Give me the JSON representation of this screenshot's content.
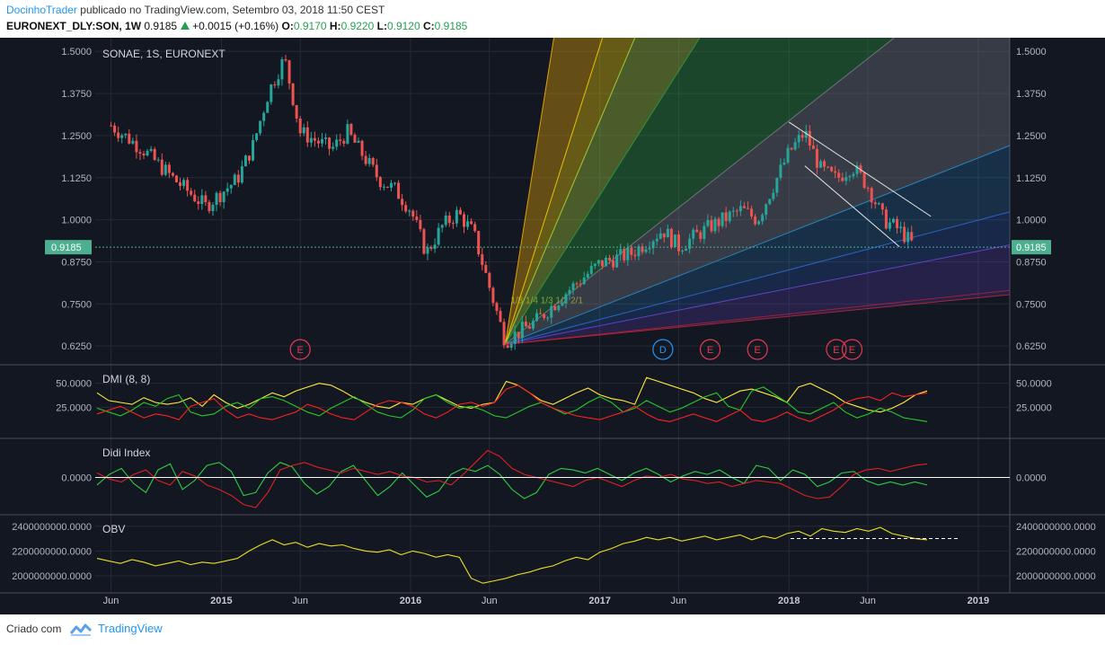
{
  "header": {
    "author": "DocinhoTrader",
    "published_text": " publicado no TradingView.com, Setembro 03, 2018 11:50 CEST",
    "symbol": "EURONEXT_DLY:SON, 1W",
    "last_price": "0.9185",
    "change": "+0.0015 (+0.16%)",
    "o_label": "O:",
    "o_value": "0.9170",
    "h_label": "H:",
    "h_value": "0.9220",
    "l_label": "L:",
    "l_value": "0.9120",
    "c_label": "C:",
    "c_value": "0.9185"
  },
  "footer": {
    "created_with": "Criado com",
    "brand": "TradingView"
  },
  "colors": {
    "background": "#131722",
    "grid": "#262a35",
    "up": "#26a69a",
    "down": "#ef5350",
    "price_line": "#4caf90",
    "dmi_plus": "#26c926",
    "dmi_minus": "#ff2020",
    "adx": "#ffeb3b",
    "didi_fast": "#2ecc40",
    "didi_slow": "#e02020",
    "obv": "#e8e020"
  },
  "chart_data": [
    {
      "type": "candlestick",
      "title": "SONAE, 1S, EURONEXT",
      "ylim": [
        0.58,
        1.53
      ],
      "y_ticks": [
        "1.5000",
        "1.3750",
        "1.2500",
        "1.1250",
        "1.0000",
        "0.8750",
        "0.7500",
        "0.6250"
      ],
      "last_price_label": "0.9185",
      "last_price": 0.9185,
      "x_ticks": [
        "Jun",
        "2015",
        "Jun",
        "2016",
        "Jun",
        "2017",
        "Jun",
        "2018",
        "Jun",
        "2019"
      ],
      "x_range": [
        "2014-05",
        "2019-03"
      ],
      "price_path": [
        [
          "2014-06",
          1.28
        ],
        [
          "2014-08",
          1.21
        ],
        [
          "2014-10",
          1.12
        ],
        [
          "2014-12",
          1.04
        ],
        [
          "2015-02",
          1.12
        ],
        [
          "2015-03",
          1.22
        ],
        [
          "2015-04",
          1.38
        ],
        [
          "2015-05",
          1.48
        ],
        [
          "2015-06",
          1.26
        ],
        [
          "2015-08",
          1.21
        ],
        [
          "2015-09",
          1.26
        ],
        [
          "2015-10",
          1.19
        ],
        [
          "2015-11",
          1.12
        ],
        [
          "2015-12",
          1.09
        ],
        [
          "2016-01",
          1.03
        ],
        [
          "2016-02",
          0.9
        ],
        [
          "2016-03",
          0.98
        ],
        [
          "2016-04",
          1.02
        ],
        [
          "2016-05",
          0.96
        ],
        [
          "2016-06",
          0.8
        ],
        [
          "2016-07",
          0.64
        ],
        [
          "2016-09",
          0.7
        ],
        [
          "2016-11",
          0.79
        ],
        [
          "2017-01",
          0.87
        ],
        [
          "2017-03",
          0.9
        ],
        [
          "2017-05",
          0.97
        ],
        [
          "2017-06",
          0.92
        ],
        [
          "2017-08",
          0.98
        ],
        [
          "2017-10",
          1.03
        ],
        [
          "2017-11",
          1.0
        ],
        [
          "2017-12",
          1.1
        ],
        [
          "2018-01",
          1.2
        ],
        [
          "2018-02",
          1.26
        ],
        [
          "2018-03",
          1.15
        ],
        [
          "2018-04",
          1.12
        ],
        [
          "2018-05",
          1.16
        ],
        [
          "2018-06",
          1.1
        ],
        [
          "2018-07",
          1.0
        ],
        [
          "2018-08",
          0.97
        ],
        [
          "2018-09",
          0.9185
        ]
      ],
      "events": [
        {
          "label": "E",
          "date": "2015-06"
        },
        {
          "label": "D",
          "date": "2017-05"
        },
        {
          "label": "E",
          "date": "2017-08"
        },
        {
          "label": "E",
          "date": "2017-11"
        },
        {
          "label": "E",
          "date": "2018-04"
        },
        {
          "label": "E",
          "date": "2018-05"
        }
      ],
      "gann_fan_label": "1/8  1/4  1/3  1/2  2/1",
      "gann_fan_origin": [
        "2016-07",
        0.63
      ],
      "gann_fan_ratios": [
        8,
        4,
        3,
        2,
        1,
        0.5,
        0.333,
        0.25,
        0.125
      ],
      "channel": {
        "upper": [
          [
            "2018-01",
            1.29
          ],
          [
            "2018-10",
            1.01
          ]
        ],
        "lower": [
          [
            "2018-02",
            1.16
          ],
          [
            "2018-08",
            0.92
          ]
        ]
      }
    },
    {
      "type": "line",
      "title": "DMI (8, 8)",
      "ylim": [
        0,
        60
      ],
      "y_ticks": [
        "50.0000",
        "25.0000"
      ],
      "series": [
        {
          "color": "#ffeb3b",
          "values": [
            40,
            32,
            30,
            28,
            35,
            30,
            28,
            30,
            35,
            26,
            38,
            30,
            24,
            28,
            34,
            40,
            36,
            42,
            46,
            50,
            48,
            42,
            35,
            30,
            26,
            24,
            30,
            28,
            34,
            38,
            32,
            26,
            24,
            28,
            30,
            52,
            48,
            40,
            32,
            28,
            34,
            40,
            45,
            38,
            34,
            32,
            28,
            56,
            52,
            48,
            44,
            40,
            34,
            30,
            36,
            42,
            44,
            40,
            36,
            30,
            46,
            50,
            44,
            38,
            30,
            26,
            22,
            20,
            24,
            30,
            38,
            42
          ]
        },
        {
          "color": "#26c926",
          "values": [
            24,
            20,
            16,
            22,
            30,
            26,
            34,
            38,
            20,
            16,
            18,
            26,
            30,
            24,
            34,
            36,
            32,
            26,
            20,
            16,
            24,
            30,
            36,
            28,
            20,
            16,
            14,
            22,
            34,
            38,
            30,
            24,
            26,
            22,
            16,
            14,
            20,
            26,
            30,
            24,
            18,
            22,
            30,
            36,
            30,
            20,
            24,
            32,
            26,
            20,
            24,
            30,
            36,
            40,
            26,
            22,
            42,
            46,
            38,
            30,
            20,
            18,
            24,
            30,
            20,
            14,
            18,
            24,
            20,
            14,
            12,
            10
          ]
        },
        {
          "color": "#ff2020",
          "values": [
            18,
            22,
            26,
            20,
            14,
            18,
            16,
            12,
            26,
            30,
            34,
            22,
            14,
            18,
            14,
            12,
            16,
            20,
            28,
            24,
            18,
            14,
            12,
            20,
            28,
            32,
            30,
            26,
            18,
            14,
            20,
            28,
            30,
            26,
            30,
            44,
            48,
            40,
            30,
            24,
            20,
            16,
            14,
            12,
            16,
            20,
            26,
            18,
            12,
            10,
            14,
            18,
            14,
            10,
            16,
            22,
            12,
            10,
            14,
            20,
            14,
            10,
            16,
            22,
            30,
            34,
            36,
            32,
            40,
            36,
            38,
            40
          ]
        }
      ]
    },
    {
      "type": "line",
      "title": "Didi Index",
      "ylim": [
        -0.2,
        0.2
      ],
      "y_ticks": [
        "0.0000"
      ],
      "series": [
        {
          "color": "#2ecc40",
          "values": [
            -0.05,
            0.02,
            0.06,
            -0.04,
            -0.1,
            0.05,
            0.09,
            -0.08,
            -0.02,
            0.08,
            0.1,
            0.04,
            -0.12,
            -0.1,
            0.03,
            0.1,
            0.07,
            -0.04,
            -0.11,
            -0.06,
            0.04,
            0.08,
            -0.02,
            -0.12,
            -0.06,
            0.03,
            -0.05,
            -0.13,
            -0.09,
            0.02,
            0.06,
            0.04,
            0.08,
            0.02,
            -0.08,
            -0.14,
            -0.1,
            0.02,
            0.06,
            0.05,
            0.03,
            0.06,
            0.02,
            -0.02,
            0.03,
            0.06,
            0.02,
            -0.03,
            0.01,
            0.04,
            0.02,
            0.05,
            0.0,
            -0.04,
            0.08,
            0.06,
            -0.02,
            0.05,
            0.02,
            -0.06,
            -0.03,
            0.03,
            0.04,
            -0.02,
            -0.05,
            -0.03,
            -0.05,
            -0.03,
            -0.05
          ]
        },
        {
          "color": "#e02020",
          "values": [
            0.03,
            -0.01,
            -0.03,
            0.02,
            0.05,
            -0.02,
            -0.05,
            0.04,
            0.01,
            -0.05,
            -0.08,
            -0.12,
            -0.18,
            -0.2,
            -0.1,
            0.05,
            0.08,
            0.1,
            0.07,
            0.05,
            0.03,
            0.06,
            0.04,
            0.02,
            0.04,
            0.01,
            0.0,
            -0.03,
            -0.02,
            -0.05,
            0.02,
            0.1,
            0.18,
            0.14,
            0.06,
            0.02,
            0.0,
            -0.02,
            -0.04,
            -0.06,
            -0.02,
            0.0,
            -0.03,
            -0.06,
            -0.02,
            0.01,
            0.0,
            0.02,
            -0.01,
            -0.02,
            -0.04,
            -0.03,
            -0.06,
            -0.04,
            -0.02,
            -0.03,
            -0.04,
            -0.08,
            -0.12,
            -0.14,
            -0.13,
            -0.06,
            0.02,
            0.05,
            0.06,
            0.04,
            0.06,
            0.08,
            0.09
          ]
        }
      ]
    },
    {
      "type": "line",
      "title": "OBV",
      "ylim": [
        1920000000,
        2420000000
      ],
      "y_ticks": [
        "2400000000.0000",
        "2200000000.0000",
        "2000000000.0000"
      ],
      "series": [
        {
          "color": "#e8e020",
          "values": [
            2140,
            2120,
            2100,
            2130,
            2110,
            2080,
            2100,
            2120,
            2090,
            2110,
            2100,
            2120,
            2140,
            2200,
            2250,
            2290,
            2250,
            2270,
            2230,
            2260,
            2240,
            2250,
            2220,
            2200,
            2190,
            2210,
            2170,
            2200,
            2180,
            2150,
            2170,
            2150,
            1980,
            1940,
            1960,
            1980,
            2010,
            2030,
            2060,
            2080,
            2120,
            2150,
            2130,
            2190,
            2220,
            2260,
            2280,
            2310,
            2290,
            2310,
            2280,
            2300,
            2320,
            2290,
            2310,
            2330,
            2290,
            2320,
            2300,
            2340,
            2360,
            2320,
            2380,
            2360,
            2350,
            2380,
            2360,
            2390,
            2340,
            2320,
            2300,
            2290
          ]
        }
      ],
      "reference_line": 2300000000
    }
  ]
}
